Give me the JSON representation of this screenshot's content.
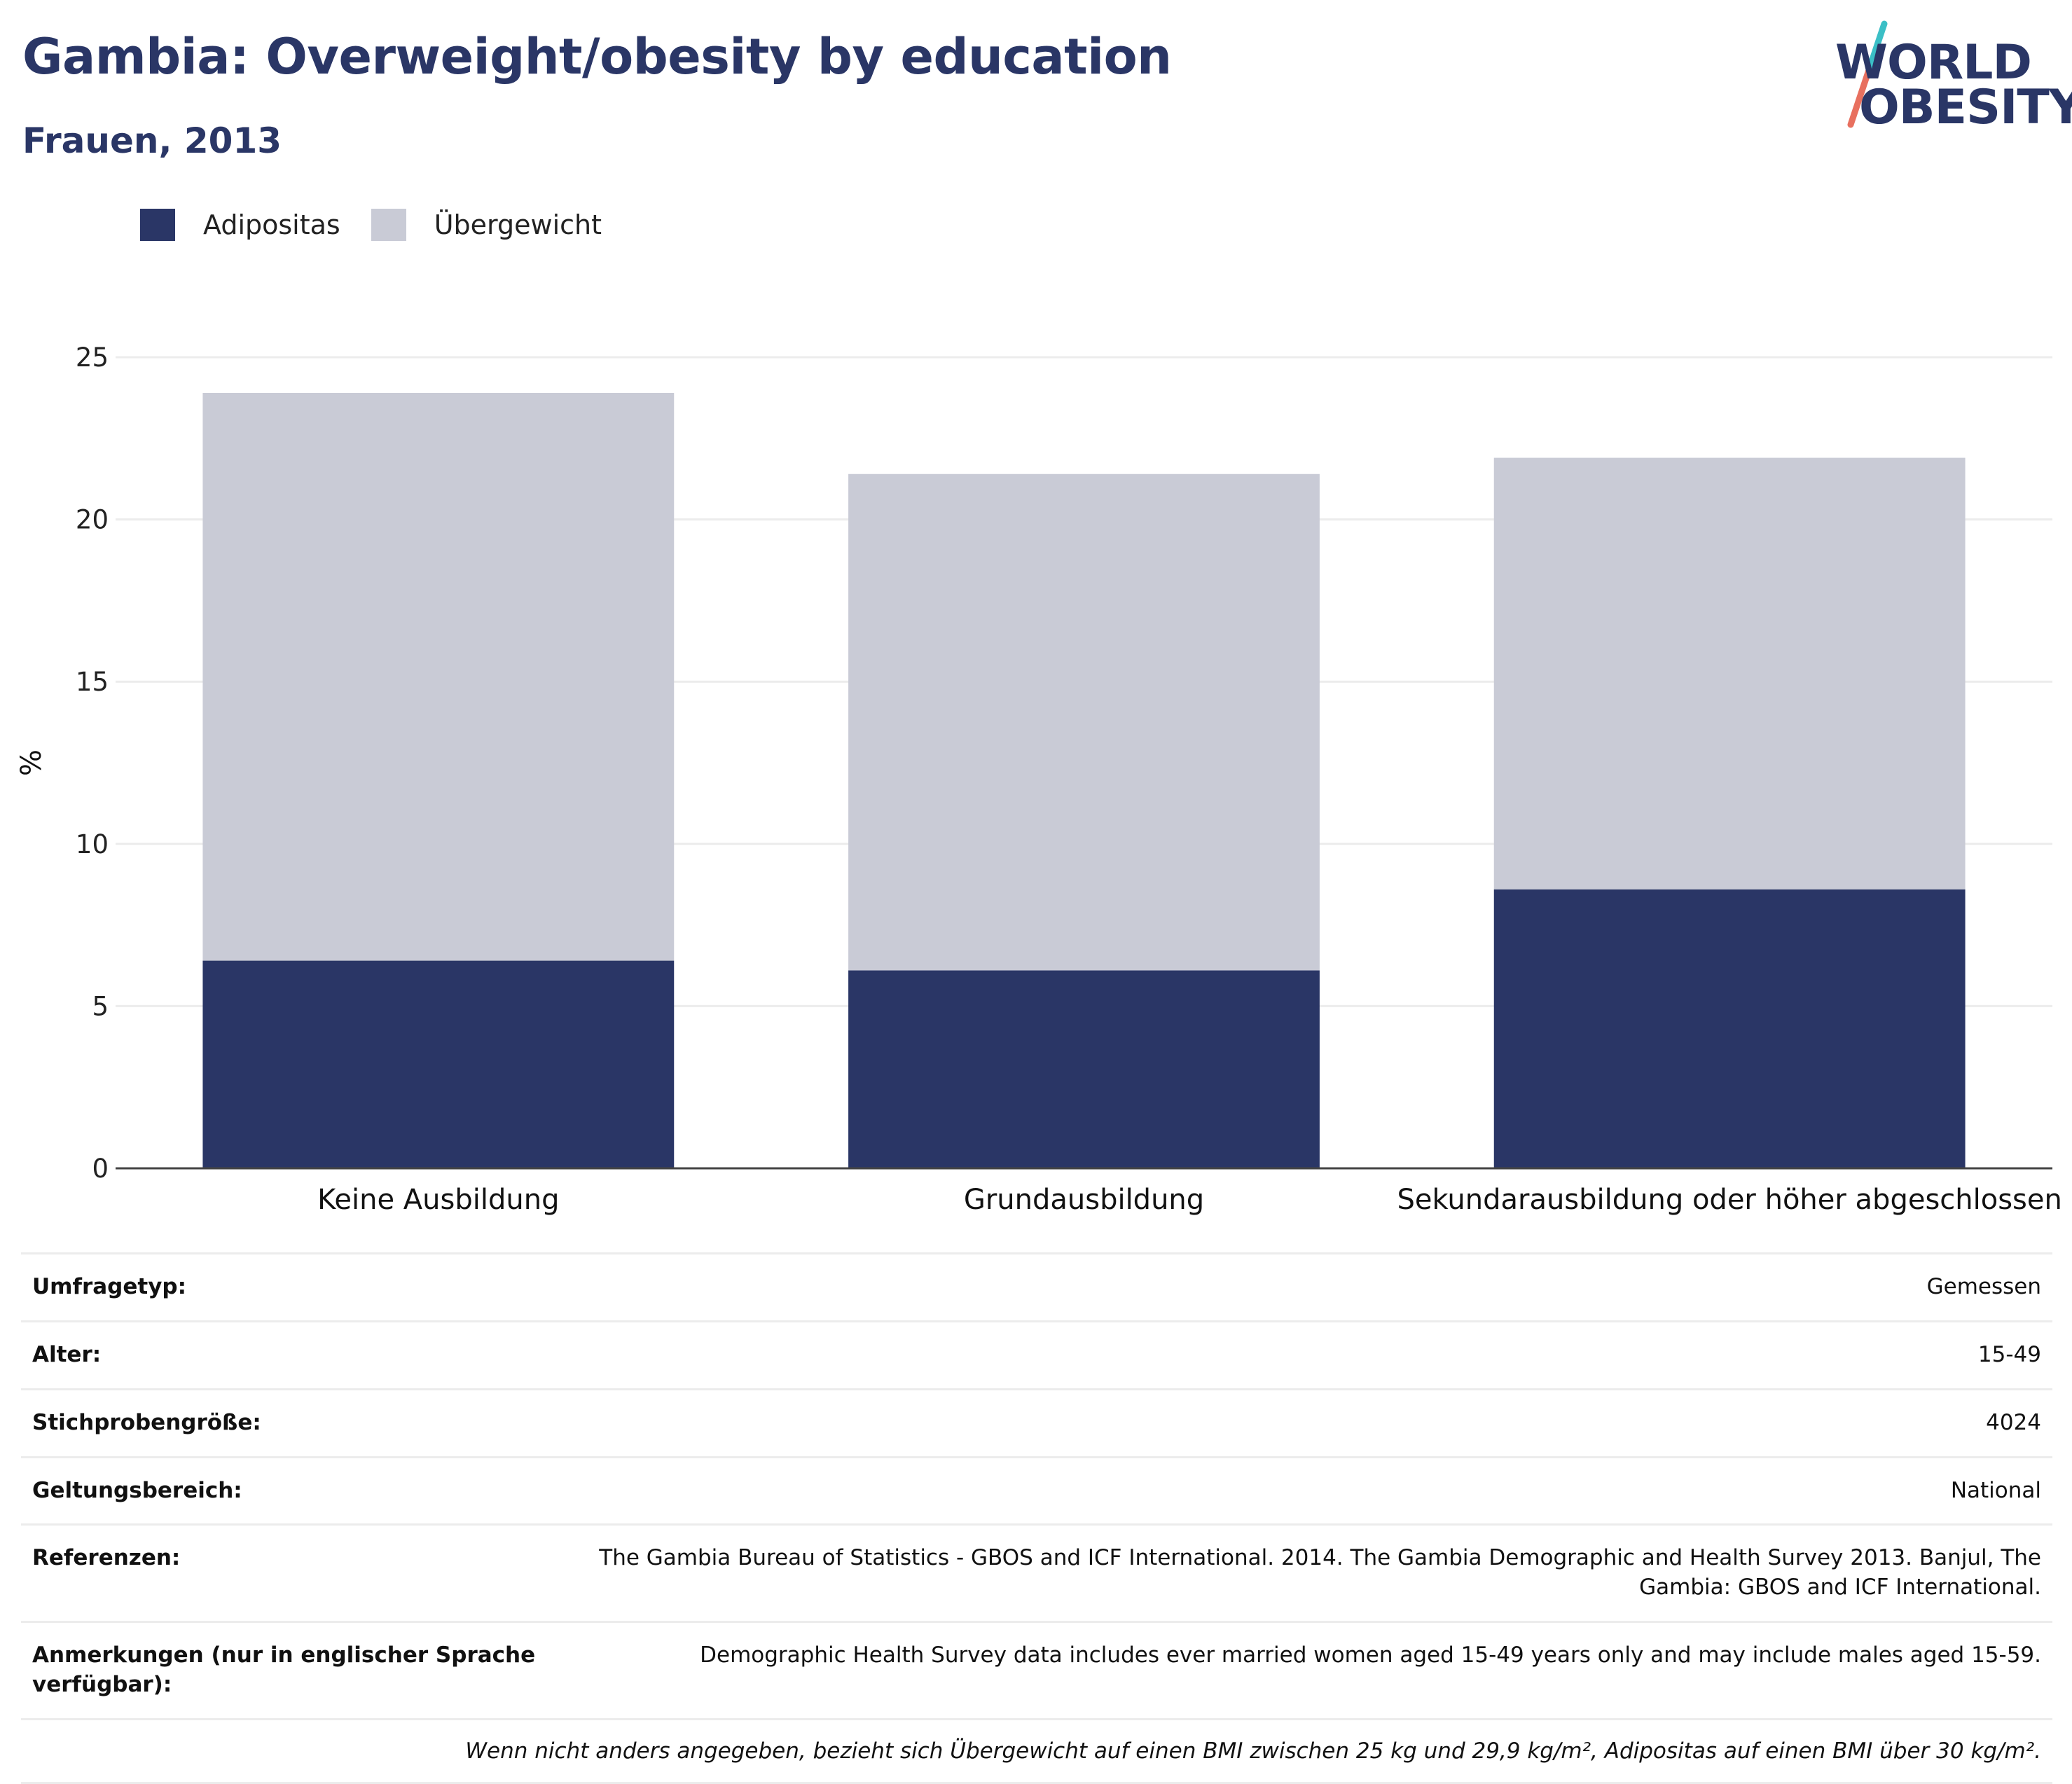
{
  "header": {
    "title": "Gambia: Overweight/obesity by education",
    "subtitle": "Frauen, 2013"
  },
  "logo": {
    "line1": "WORLD",
    "line2": "OBESITY",
    "slash_colors": [
      "#3bbfc6",
      "#e8705f"
    ]
  },
  "colors": {
    "obesity": "#2a3666",
    "overweight": "#c9cbd6",
    "grid": "#ececec",
    "axis": "#444444"
  },
  "legend": [
    {
      "label": "Adipositas",
      "color": "#2a3666"
    },
    {
      "label": "Übergewicht",
      "color": "#c9cbd6"
    }
  ],
  "chart_data": {
    "type": "bar",
    "stacked": true,
    "categories": [
      "Keine Ausbildung",
      "Grundausbildung",
      "Sekundarausbildung oder höher abgeschlossen"
    ],
    "series": [
      {
        "name": "Adipositas",
        "values": [
          6.4,
          6.1,
          8.6
        ]
      },
      {
        "name": "Übergewicht",
        "values": [
          17.5,
          15.3,
          13.3
        ]
      }
    ],
    "ylabel": "%",
    "ylim": [
      0,
      25
    ],
    "yticks": [
      0,
      5,
      10,
      15,
      20,
      25
    ],
    "grid": true,
    "legend_position": "top-left"
  },
  "meta": [
    {
      "key": "Umfragetyp:",
      "value": "Gemessen"
    },
    {
      "key": "Alter:",
      "value": "15-49"
    },
    {
      "key": "Stichprobengröße:",
      "value": "4024"
    },
    {
      "key": "Geltungsbereich:",
      "value": "National"
    },
    {
      "key": "Referenzen:",
      "value": "The Gambia Bureau of Statistics - GBOS and ICF International. 2014. The Gambia Demographic and Health Survey 2013. Banjul, The Gambia: GBOS and ICF International."
    },
    {
      "key": "Anmerkungen (nur in englischer Sprache verfügbar):",
      "value": "Demographic Health Survey data includes ever married women aged 15-49 years only and may include males aged 15-59."
    }
  ],
  "footnote": "Wenn nicht anders angegeben, bezieht sich Übergewicht auf einen BMI zwischen 25 kg und 29,9 kg/m², Adipositas auf einen BMI über 30 kg/m²."
}
